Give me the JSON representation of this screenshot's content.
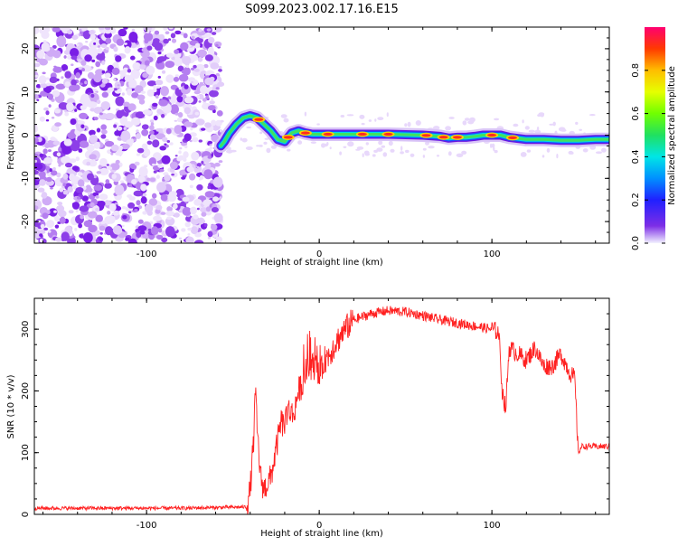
{
  "title": "S099.2023.002.17.16.E15",
  "chart_data": [
    {
      "type": "heatmap",
      "xlabel": "Height of straight line (km)",
      "ylabel": "Frequency (Hz)",
      "xlim": [
        -165,
        168
      ],
      "ylim": [
        -25,
        25
      ],
      "xticks": [
        -100,
        0,
        100
      ],
      "yticks": [
        -20,
        -10,
        0,
        10,
        20
      ],
      "noise_region_x": [
        -165,
        -57
      ],
      "ridge": {
        "x": [
          -57,
          -55,
          -52,
          -48,
          -44,
          -40,
          -36,
          -32,
          -28,
          -24,
          -20,
          -16,
          -12,
          -8,
          -4,
          0,
          10,
          20,
          30,
          40,
          50,
          60,
          70,
          75,
          80,
          85,
          90,
          95,
          100,
          105,
          110,
          120,
          130,
          140,
          150,
          160,
          168
        ],
        "y": [
          -2.5,
          -1.5,
          0.5,
          2.5,
          4,
          4.5,
          4,
          2.5,
          1,
          -1,
          -1.5,
          0.5,
          1,
          0.5,
          0.2,
          0.2,
          0.2,
          0.2,
          0.2,
          0.2,
          0.1,
          0,
          -0.3,
          -0.7,
          -0.5,
          -0.5,
          -0.3,
          0,
          0,
          0,
          -0.5,
          -1,
          -1,
          -1.2,
          -1.2,
          -1,
          -1
        ]
      },
      "peaks_x": [
        -35,
        -18,
        -8,
        5,
        25,
        40,
        62,
        72,
        80,
        100,
        112
      ],
      "colorbar": {
        "label": "Normalized spectral amplitude",
        "ticks": [
          0.0,
          0.2,
          0.4,
          0.6,
          0.8
        ],
        "range": [
          0,
          1
        ]
      }
    },
    {
      "type": "line",
      "xlabel": "Height of straight line (km)",
      "ylabel": "SNR (10 * v/v)",
      "xlim": [
        -165,
        168
      ],
      "ylim": [
        0,
        350
      ],
      "xticks": [
        -100,
        0,
        100
      ],
      "yticks": [
        0,
        100,
        200,
        300
      ],
      "color": "#ff2020",
      "series": [
        {
          "x": [
            -165,
            -120,
            -80,
            -42,
            -40,
            -38,
            -37,
            -36,
            -34,
            -32,
            -30,
            -28,
            -26,
            -24,
            -22,
            -20,
            -18,
            -15,
            -12,
            -10,
            -8,
            -5,
            -2,
            0,
            3,
            6,
            10,
            15,
            20,
            25,
            30,
            40,
            50,
            60,
            70,
            80,
            90,
            100,
            104,
            106,
            108,
            110,
            115,
            120,
            125,
            130,
            135,
            140,
            145,
            148,
            150,
            152,
            155,
            160,
            168
          ],
          "y": [
            10,
            10,
            10,
            12,
            40,
            120,
            200,
            140,
            60,
            40,
            50,
            60,
            90,
            120,
            150,
            140,
            170,
            160,
            200,
            210,
            230,
            240,
            240,
            220,
            250,
            260,
            280,
            300,
            315,
            320,
            325,
            330,
            328,
            322,
            315,
            310,
            305,
            300,
            295,
            200,
            170,
            270,
            260,
            250,
            270,
            240,
            240,
            260,
            230,
            220,
            100,
            110,
            110,
            110,
            110
          ]
        }
      ]
    }
  ]
}
